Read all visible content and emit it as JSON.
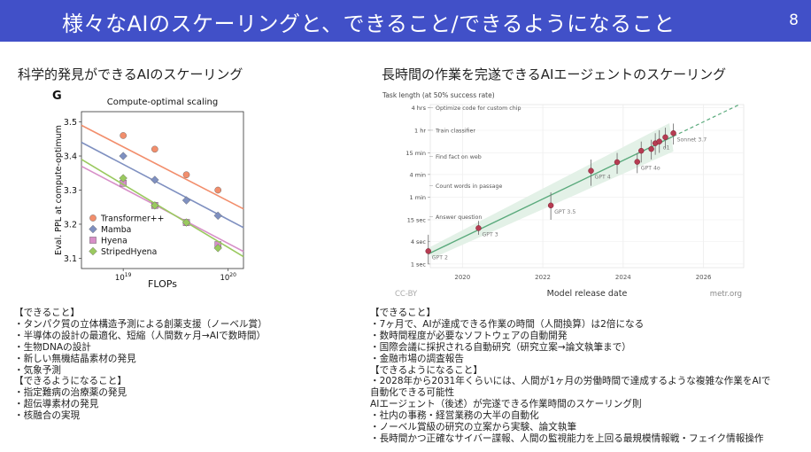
{
  "header": {
    "title": "様々なAIのスケーリングと、できること/できるようになること",
    "page_number": "8"
  },
  "left": {
    "section_title": "科学的発見ができるAIのスケーリング",
    "chart_data": {
      "type": "scatter",
      "panel_label": "G",
      "title": "Compute-optimal scaling",
      "xlabel": "FLOPs",
      "ylabel": "Eval. PPL at compute-optimum",
      "x_scale": "log",
      "xlim": [
        4e+18,
        1.4e+20
      ],
      "ylim": [
        3.07,
        3.53
      ],
      "x_ticks": [
        {
          "v": 1e+19,
          "base": "10",
          "exp": "19"
        },
        {
          "v": 1e+20,
          "base": "10",
          "exp": "20"
        }
      ],
      "y_ticks": [
        3.1,
        3.2,
        3.3,
        3.4,
        3.5
      ],
      "legend_position": "lower-left",
      "series": [
        {
          "name": "Transformer++",
          "color": "#f28e6c",
          "marker": "circle",
          "x": [
            1e+19,
            2e+19,
            4e+19,
            8e+19
          ],
          "y": [
            3.46,
            3.42,
            3.345,
            3.3
          ],
          "fit": [
            3.49,
            3.245
          ]
        },
        {
          "name": "Mamba",
          "color": "#7f90c0",
          "marker": "diamond",
          "x": [
            1e+19,
            2e+19,
            4e+19,
            8e+19
          ],
          "y": [
            3.4,
            3.33,
            3.27,
            3.225
          ],
          "fit": [
            3.44,
            3.19
          ]
        },
        {
          "name": "Hyena",
          "color": "#d78fc8",
          "marker": "square",
          "x": [
            1e+19,
            2e+19,
            4e+19,
            8e+19
          ],
          "y": [
            3.32,
            3.255,
            3.205,
            3.14
          ],
          "fit": [
            3.37,
            3.12
          ]
        },
        {
          "name": "StripedHyena",
          "color": "#9ac95f",
          "marker": "diamond",
          "x": [
            1e+19,
            2e+19,
            4e+19,
            8e+19
          ],
          "y": [
            3.335,
            3.255,
            3.205,
            3.13
          ],
          "fit": [
            3.39,
            3.105
          ]
        }
      ]
    },
    "can_do_heading": "【できること】",
    "can_do": [
      "・タンパク質の立体構造予測による創薬支援（ノーベル賞）",
      "・半導体の設計の最適化、短縮（人間数ヶ月→AIで数時間）",
      "・生物DNAの設計",
      "・新しい無機結晶素材の発見",
      "・気象予測"
    ],
    "will_do_heading": "【できるようになること】",
    "will_do": [
      "・指定難病の治療薬の発見",
      "・超伝導素材の発見",
      "・核融合の実現"
    ]
  },
  "right": {
    "section_title": "長時間の作業を完遂できるAIエージェントのスケーリング",
    "chart_data": {
      "type": "scatter",
      "title": "Task length (at 50% success rate)",
      "xlabel": "Model release date",
      "ylabel": "",
      "y_scale": "log",
      "y_unit": "seconds",
      "xlim": [
        2019.2,
        2027.0
      ],
      "ylim": [
        0.8,
        17280
      ],
      "x_ticks": [
        2020,
        2022,
        2024,
        2026
      ],
      "y_ticks": [
        {
          "v": 1,
          "label": "1 sec"
        },
        {
          "v": 4,
          "label": "4 sec"
        },
        {
          "v": 15,
          "label": "15 sec"
        },
        {
          "v": 60,
          "label": "1 min"
        },
        {
          "v": 240,
          "label": "4 min"
        },
        {
          "v": 900,
          "label": "15 min"
        },
        {
          "v": 3600,
          "label": "1 hr"
        },
        {
          "v": 14400,
          "label": "4 hrs"
        }
      ],
      "task_annotations": [
        {
          "v": 14400,
          "label": "Optimize code for custom chip"
        },
        {
          "v": 3600,
          "label": "Train classifier"
        },
        {
          "v": 720,
          "label": "Find fact on web"
        },
        {
          "v": 120,
          "label": "Count words in passage"
        },
        {
          "v": 18,
          "label": "Answer question"
        }
      ],
      "points": [
        {
          "x": 2019.15,
          "y": 2.2,
          "lo": 1.0,
          "hi": 6.0,
          "label": "GPT 2"
        },
        {
          "x": 2020.4,
          "y": 9.0,
          "lo": 6.0,
          "hi": 14.0,
          "label": "GPT 3"
        },
        {
          "x": 2022.2,
          "y": 36,
          "lo": 15,
          "hi": 80,
          "label": "GPT 3.5"
        },
        {
          "x": 2023.2,
          "y": 300,
          "lo": 120,
          "hi": 600,
          "label": "GPT 4"
        },
        {
          "x": 2023.85,
          "y": 510,
          "lo": 250,
          "hi": 900,
          "label": ""
        },
        {
          "x": 2024.35,
          "y": 520,
          "lo": 260,
          "hi": 900,
          "label": "GPT 4o"
        },
        {
          "x": 2024.45,
          "y": 1020,
          "lo": 500,
          "hi": 1800,
          "label": ""
        },
        {
          "x": 2024.7,
          "y": 1140,
          "lo": 600,
          "hi": 2000,
          "label": ""
        },
        {
          "x": 2024.8,
          "y": 1620,
          "lo": 800,
          "hi": 3000,
          "label": ""
        },
        {
          "x": 2024.9,
          "y": 1800,
          "lo": 900,
          "hi": 3600,
          "label": "o1"
        },
        {
          "x": 2025.05,
          "y": 2340,
          "lo": 1200,
          "hi": 4200,
          "label": ""
        },
        {
          "x": 2025.25,
          "y": 3000,
          "lo": 1500,
          "hi": 5400,
          "label": "Sonnet 3.7"
        }
      ],
      "watermark_left": "CC-BY",
      "watermark_right": "metr.org",
      "colors": {
        "point": "#b63c52",
        "trend": "#5aaa7c",
        "band": "#e3f1e7"
      }
    },
    "can_do_heading": "【できること】",
    "can_do": [
      "・7ヶ月で、AIが達成できる作業の時間（人間換算）は2倍になる",
      "・数時間程度が必要なソフトウェアの自動開発",
      "・国際会議に採択される自動研究（研究立案→論文執筆まで）",
      "・金融市場の調査報告"
    ],
    "will_do_heading": "【できるようになること】",
    "will_do": [
      "・2028年から2031年くらいには、人間が1ヶ月の労働時間で達成するような複雑な作業をAIで",
      "自動化できる可能性",
      "AIエージェント（後述）が完遂できる作業時間のスケーリング則",
      "・社内の事務・経営業務の大半の自動化",
      "・ノーベル賞級の研究の立案から実験、論文執筆",
      "・長時間かつ正確なサイバー諜報、人間の監視能力を上回る最規模情報戦・フェイク情報操作"
    ]
  }
}
